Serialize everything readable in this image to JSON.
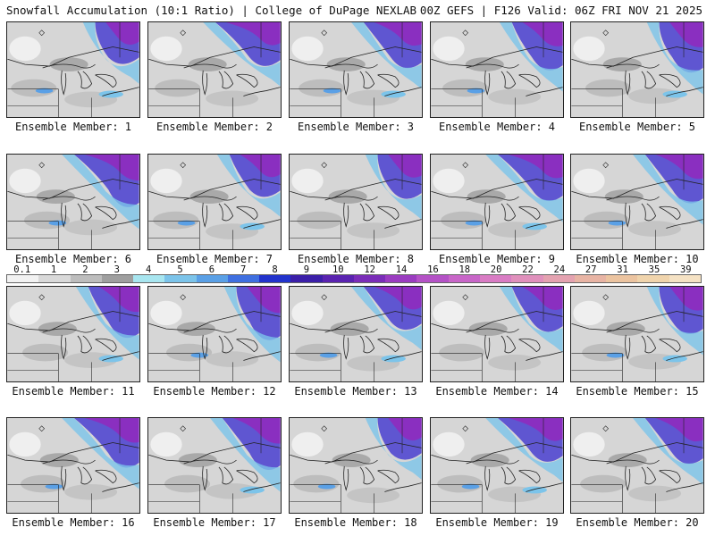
{
  "header": {
    "title_left": "Snowfall Accumulation (10:1 Ratio) | College of DuPage NEXLAB",
    "title_right": "00Z GEFS | F126 Valid: 06Z FRI NOV 21 2025"
  },
  "panels": [
    {
      "label": "Ensemble Member: 1"
    },
    {
      "label": "Ensemble Member: 2"
    },
    {
      "label": "Ensemble Member: 3"
    },
    {
      "label": "Ensemble Member: 4"
    },
    {
      "label": "Ensemble Member: 5"
    },
    {
      "label": "Ensemble Member: 6"
    },
    {
      "label": "Ensemble Member: 7"
    },
    {
      "label": "Ensemble Member: 8"
    },
    {
      "label": "Ensemble Member: 9"
    },
    {
      "label": "Ensemble Member: 10"
    },
    {
      "label": "Ensemble Member: 11"
    },
    {
      "label": "Ensemble Member: 12"
    },
    {
      "label": "Ensemble Member: 13"
    },
    {
      "label": "Ensemble Member: 14"
    },
    {
      "label": "Ensemble Member: 15"
    },
    {
      "label": "Ensemble Member: 16"
    },
    {
      "label": "Ensemble Member: 17"
    },
    {
      "label": "Ensemble Member: 18"
    },
    {
      "label": "Ensemble Member: 19"
    },
    {
      "label": "Ensemble Member: 20"
    }
  ],
  "colorbar": {
    "ticks": [
      "0.1",
      "1",
      "2",
      "3",
      "4",
      "5",
      "6",
      "7",
      "8",
      "9",
      "10",
      "12",
      "14",
      "16",
      "18",
      "20",
      "22",
      "24",
      "27",
      "31",
      "35",
      "39"
    ],
    "colors": [
      "#f2f2f2",
      "#d9d9d9",
      "#bdbdbd",
      "#9f9f9f",
      "#a8e6f0",
      "#7cc4ea",
      "#5aa0e6",
      "#3f6fe0",
      "#2233cc",
      "#3b1fa8",
      "#5a23b0",
      "#7a2db8",
      "#9a3cc0",
      "#b452c6",
      "#c866c8",
      "#d97cc4",
      "#e090bc",
      "#e4a2b0",
      "#e8b4a4",
      "#ecc4a0",
      "#f0d4ac",
      "#f5e2c4"
    ]
  }
}
